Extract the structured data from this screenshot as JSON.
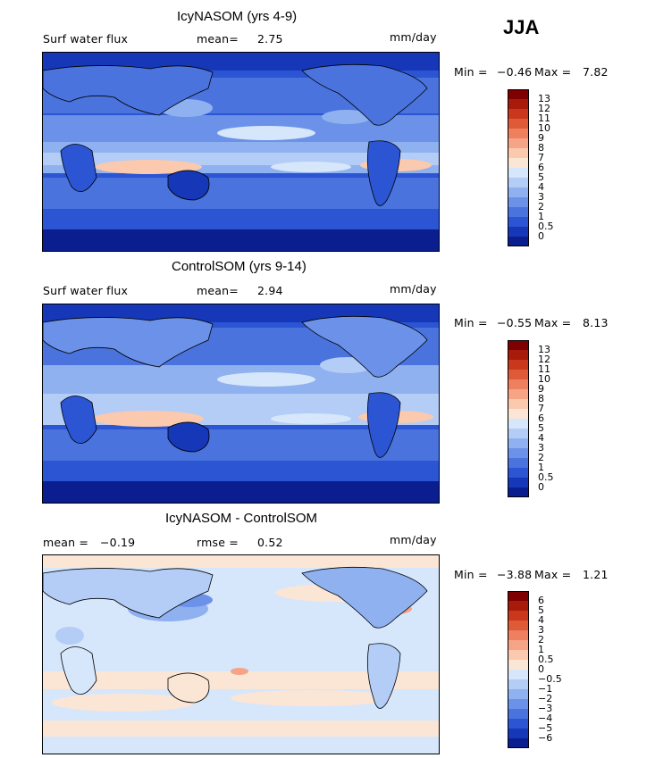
{
  "season": "JJA",
  "panels": [
    {
      "title": "IcyNASOM (yrs 4-9)",
      "field_label": "Surf water flux",
      "stat1_label": "mean=",
      "stat1_value": "2.75",
      "stat2_label": "",
      "stat2_value": "",
      "units": "mm/day",
      "min_label": "Min =",
      "min_value": "−0.46",
      "max_label": "Max =",
      "max_value": "7.82",
      "colorbar": {
        "colors": [
          "#7f0000",
          "#a81b0a",
          "#c9381d",
          "#df5a36",
          "#ee8060",
          "#f6a486",
          "#fbc9ae",
          "#fbe6d6",
          "#d6e6fb",
          "#b4cdf6",
          "#8fb1f0",
          "#6b92e8",
          "#4a73de",
          "#2b55d3",
          "#1637b8",
          "#0a1e8f"
        ],
        "labels": [
          "13",
          "12",
          "11",
          "10",
          "9",
          "8",
          "7",
          "6",
          "5",
          "4",
          "3",
          "2",
          "1",
          "0.5",
          "0"
        ]
      }
    },
    {
      "title": "ControlSOM (yrs 9-14)",
      "field_label": "Surf water flux",
      "stat1_label": "mean=",
      "stat1_value": "2.94",
      "stat2_label": "",
      "stat2_value": "",
      "units": "mm/day",
      "min_label": "Min =",
      "min_value": "−0.55",
      "max_label": "Max =",
      "max_value": "8.13",
      "colorbar": {
        "colors": [
          "#7f0000",
          "#a81b0a",
          "#c9381d",
          "#df5a36",
          "#ee8060",
          "#f6a486",
          "#fbc9ae",
          "#fbe6d6",
          "#d6e6fb",
          "#b4cdf6",
          "#8fb1f0",
          "#6b92e8",
          "#4a73de",
          "#2b55d3",
          "#1637b8",
          "#0a1e8f"
        ],
        "labels": [
          "13",
          "12",
          "11",
          "10",
          "9",
          "8",
          "7",
          "6",
          "5",
          "4",
          "3",
          "2",
          "1",
          "0.5",
          "0"
        ]
      }
    },
    {
      "title": "IcyNASOM - ControlSOM",
      "field_label": "",
      "stat1_label": "mean =",
      "stat1_value": "−0.19",
      "stat2_label": "rmse =",
      "stat2_value": "0.52",
      "units": "mm/day",
      "min_label": "Min =",
      "min_value": "−3.88",
      "max_label": "Max =",
      "max_value": "1.21",
      "colorbar": {
        "colors": [
          "#7f0000",
          "#a81b0a",
          "#c9381d",
          "#df5a36",
          "#ee8060",
          "#f6a486",
          "#fbc9ae",
          "#fbe6d6",
          "#d6e6fb",
          "#b4cdf6",
          "#8fb1f0",
          "#6b92e8",
          "#4a73de",
          "#2b55d3",
          "#1637b8",
          "#0a1e8f"
        ],
        "labels": [
          "6",
          "5",
          "4",
          "3",
          "2",
          "1",
          "0.5",
          "0",
          "−0.5",
          "−1",
          "−2",
          "−3",
          "−4",
          "−5",
          "−6"
        ]
      }
    }
  ]
}
